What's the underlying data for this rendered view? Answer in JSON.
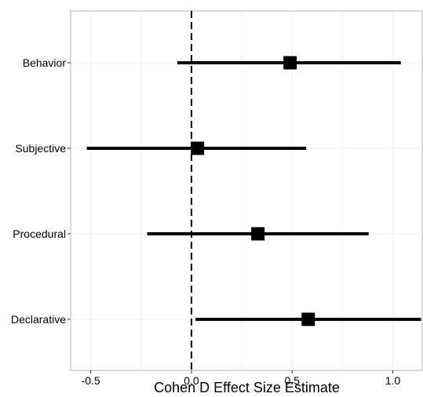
{
  "chart_data": {
    "type": "forest",
    "title": "",
    "xlabel": "Cohen D Effect Size Estimate",
    "ylabel": "",
    "xlim": [
      -0.6,
      1.15
    ],
    "x_ticks": [
      -0.5,
      0.0,
      0.5,
      1.0
    ],
    "x_tick_labels": [
      "-0.5",
      "0.0",
      "0.5",
      "1.0"
    ],
    "reference_line": 0,
    "grid": true,
    "categories": [
      "Behavior",
      "Subjective",
      "Procedural",
      "Declarative"
    ],
    "series": [
      {
        "estimates": [
          0.49,
          0.03,
          0.33,
          0.58
        ],
        "lower": [
          -0.07,
          -0.52,
          -0.22,
          0.02
        ],
        "upper": [
          1.04,
          0.57,
          0.88,
          1.14
        ]
      }
    ],
    "colors": {
      "marker": "#000000",
      "panel_border": "#b3b3b3",
      "grid": "#f0f0f0"
    }
  }
}
